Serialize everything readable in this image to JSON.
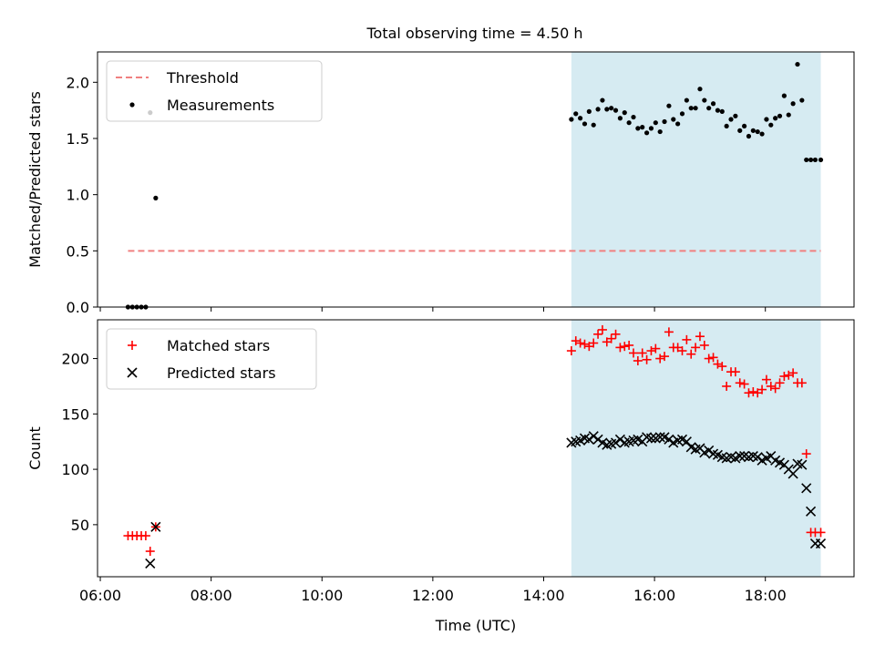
{
  "title": "Total observing time = 4.50 h",
  "chart_data": [
    {
      "type": "scatter",
      "panel": "top",
      "ylabel": "Matched/Predicted stars",
      "ylim": [
        0,
        2.27
      ],
      "yticks": [
        0.0,
        0.5,
        1.0,
        1.5,
        2.0
      ],
      "ytick_labels": [
        "0.0",
        "0.5",
        "1.0",
        "1.5",
        "2.0"
      ],
      "xlim": [
        5.95,
        19.6
      ],
      "xticks": [
        6,
        8,
        10,
        12,
        14,
        16,
        18
      ],
      "observing_window": [
        14.5,
        19.0
      ],
      "legend": [
        "Threshold",
        "Measurements"
      ],
      "legend_placement": "upper-left",
      "grid": false,
      "threshold": {
        "name": "Threshold",
        "value": 0.5,
        "x_range": [
          6.5,
          19.0
        ],
        "color": "#f08080"
      },
      "series": [
        {
          "name": "Measurements",
          "color": "#000000",
          "x": [
            6.5,
            6.58,
            6.66,
            6.74,
            6.82,
            6.9,
            7.0,
            14.5,
            14.58,
            14.66,
            14.74,
            14.82,
            14.9,
            14.98,
            15.06,
            15.14,
            15.22,
            15.3,
            15.38,
            15.46,
            15.54,
            15.62,
            15.7,
            15.78,
            15.86,
            15.94,
            16.02,
            16.1,
            16.18,
            16.26,
            16.34,
            16.42,
            16.5,
            16.58,
            16.66,
            16.74,
            16.82,
            16.9,
            16.98,
            17.06,
            17.14,
            17.22,
            17.3,
            17.38,
            17.46,
            17.54,
            17.62,
            17.7,
            17.78,
            17.86,
            17.94,
            18.02,
            18.1,
            18.18,
            18.26,
            18.34,
            18.42,
            18.5,
            18.58,
            18.66,
            18.74,
            18.82,
            18.9,
            19.0
          ],
          "y": [
            0.0,
            0.0,
            0.0,
            0.0,
            0.0,
            1.73,
            0.97,
            1.67,
            1.72,
            1.68,
            1.63,
            1.74,
            1.62,
            1.76,
            1.84,
            1.76,
            1.77,
            1.75,
            1.68,
            1.73,
            1.64,
            1.69,
            1.59,
            1.6,
            1.55,
            1.59,
            1.64,
            1.56,
            1.65,
            1.79,
            1.67,
            1.63,
            1.72,
            1.84,
            1.77,
            1.77,
            1.94,
            1.84,
            1.77,
            1.81,
            1.75,
            1.74,
            1.61,
            1.67,
            1.7,
            1.57,
            1.61,
            1.52,
            1.57,
            1.56,
            1.54,
            1.67,
            1.62,
            1.68,
            1.7,
            1.88,
            1.71,
            1.81,
            2.16,
            1.84,
            1.31,
            1.31,
            1.31,
            1.31
          ]
        }
      ]
    },
    {
      "type": "scatter",
      "panel": "bottom",
      "ylabel": "Count",
      "xlabel": "Time (UTC)",
      "ylim": [
        3,
        235
      ],
      "yticks": [
        50,
        100,
        150,
        200
      ],
      "ytick_labels": [
        "50",
        "100",
        "150",
        "200"
      ],
      "xlim": [
        5.95,
        19.6
      ],
      "xticks": [
        6,
        8,
        10,
        12,
        14,
        16,
        18
      ],
      "xtick_labels": [
        "06:00",
        "08:00",
        "10:00",
        "12:00",
        "14:00",
        "16:00",
        "18:00"
      ],
      "observing_window": [
        14.5,
        19.0
      ],
      "legend": [
        "Matched stars",
        "Predicted stars"
      ],
      "legend_placement": "upper-left",
      "grid": false,
      "series": [
        {
          "name": "Matched stars",
          "marker": "plus",
          "color": "#ff0000",
          "x": [
            6.5,
            6.58,
            6.66,
            6.74,
            6.82,
            6.9,
            7.0,
            14.5,
            14.58,
            14.66,
            14.74,
            14.82,
            14.9,
            14.98,
            15.06,
            15.14,
            15.22,
            15.3,
            15.38,
            15.46,
            15.54,
            15.62,
            15.7,
            15.78,
            15.86,
            15.94,
            16.02,
            16.1,
            16.18,
            16.26,
            16.34,
            16.42,
            16.5,
            16.58,
            16.66,
            16.74,
            16.82,
            16.9,
            16.98,
            17.06,
            17.14,
            17.22,
            17.3,
            17.38,
            17.46,
            17.54,
            17.62,
            17.7,
            17.78,
            17.86,
            17.94,
            18.02,
            18.1,
            18.18,
            18.26,
            18.34,
            18.42,
            18.5,
            18.58,
            18.66,
            18.74,
            18.82,
            18.9,
            19.0
          ],
          "y": [
            40,
            40,
            40,
            40,
            40,
            26,
            48,
            207,
            216,
            214,
            213,
            211,
            214,
            222,
            226,
            215,
            218,
            222,
            210,
            211,
            212,
            205,
            198,
            205,
            199,
            207,
            209,
            200,
            202,
            224,
            210,
            210,
            207,
            217,
            204,
            210,
            220,
            212,
            200,
            201,
            195,
            193,
            175,
            188,
            188,
            178,
            177,
            169,
            170,
            169,
            172,
            181,
            175,
            173,
            178,
            184,
            185,
            187,
            178,
            178,
            114,
            43,
            43,
            43
          ]
        },
        {
          "name": "Predicted stars",
          "marker": "x",
          "color": "#000000",
          "x": [
            6.9,
            7.0,
            14.5,
            14.58,
            14.66,
            14.74,
            14.82,
            14.9,
            14.98,
            15.06,
            15.14,
            15.22,
            15.3,
            15.38,
            15.46,
            15.54,
            15.62,
            15.7,
            15.78,
            15.86,
            15.94,
            16.02,
            16.1,
            16.18,
            16.26,
            16.34,
            16.42,
            16.5,
            16.58,
            16.66,
            16.74,
            16.82,
            16.9,
            16.98,
            17.06,
            17.14,
            17.22,
            17.3,
            17.38,
            17.46,
            17.54,
            17.62,
            17.7,
            17.78,
            17.86,
            17.94,
            18.02,
            18.1,
            18.18,
            18.26,
            18.34,
            18.42,
            18.5,
            18.58,
            18.66,
            18.74,
            18.82,
            18.9,
            19.0
          ],
          "y": [
            15,
            48,
            124,
            125,
            126,
            128,
            127,
            130,
            127,
            124,
            122,
            123,
            124,
            127,
            124,
            125,
            126,
            127,
            125,
            129,
            128,
            128,
            129,
            129,
            127,
            124,
            126,
            127,
            125,
            120,
            118,
            119,
            115,
            117,
            114,
            113,
            111,
            110,
            111,
            110,
            112,
            112,
            111,
            112,
            111,
            108,
            110,
            112,
            108,
            106,
            104,
            100,
            96,
            105,
            104,
            83,
            62,
            33,
            33
          ]
        }
      ]
    }
  ]
}
